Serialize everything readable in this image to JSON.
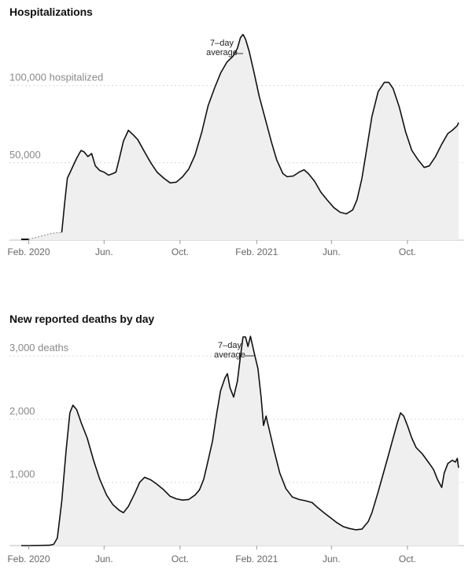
{
  "chart_data": [
    {
      "type": "area",
      "title": "Hospitalizations",
      "annotation": [
        "7–day",
        "average"
      ],
      "y_ticks": [
        {
          "value": 100000,
          "label": "100,000 hospitalized"
        },
        {
          "value": 50000,
          "label": "50,000"
        }
      ],
      "x_ticks": [
        {
          "date": "2020-02-01",
          "label": "Feb. 2020"
        },
        {
          "date": "2020-06-01",
          "label": "Jun."
        },
        {
          "date": "2020-10-01",
          "label": "Oct."
        },
        {
          "date": "2021-02-01",
          "label": "Feb. 2021"
        },
        {
          "date": "2021-06-01",
          "label": "Jun."
        },
        {
          "date": "2021-10-01",
          "label": "Oct."
        }
      ],
      "x_range": [
        "2020-01-20",
        "2021-12-31"
      ],
      "ylim": [
        0,
        140000
      ],
      "grid": true,
      "color": "#111111",
      "fill": "#efefef",
      "no_data_until": "2020-03-25",
      "series": [
        {
          "values": [
            [
              "2020-01-20",
              500
            ],
            [
              "2020-02-01",
              500
            ],
            [
              "2020-02-15",
              2000
            ],
            [
              "2020-03-10",
              4500
            ],
            [
              "2020-03-25",
              5000
            ],
            [
              "2020-03-30",
              25000
            ],
            [
              "2020-04-03",
              40000
            ],
            [
              "2020-04-10",
              46000
            ],
            [
              "2020-04-18",
              53000
            ],
            [
              "2020-04-25",
              58000
            ],
            [
              "2020-04-30",
              57000
            ],
            [
              "2020-05-06",
              54000
            ],
            [
              "2020-05-12",
              56000
            ],
            [
              "2020-05-18",
              48000
            ],
            [
              "2020-05-25",
              45000
            ],
            [
              "2020-06-01",
              44000
            ],
            [
              "2020-06-08",
              42000
            ],
            [
              "2020-06-15",
              43000
            ],
            [
              "2020-06-20",
              44000
            ],
            [
              "2020-06-25",
              52000
            ],
            [
              "2020-07-02",
              64000
            ],
            [
              "2020-07-10",
              71000
            ],
            [
              "2020-07-18",
              68000
            ],
            [
              "2020-07-25",
              65000
            ],
            [
              "2020-08-05",
              57000
            ],
            [
              "2020-08-15",
              50000
            ],
            [
              "2020-08-25",
              44000
            ],
            [
              "2020-09-05",
              40000
            ],
            [
              "2020-09-15",
              37000
            ],
            [
              "2020-09-25",
              37500
            ],
            [
              "2020-10-05",
              41000
            ],
            [
              "2020-10-15",
              46000
            ],
            [
              "2020-10-25",
              55000
            ],
            [
              "2020-11-05",
              70000
            ],
            [
              "2020-11-15",
              87000
            ],
            [
              "2020-11-25",
              98000
            ],
            [
              "2020-12-05",
              108000
            ],
            [
              "2020-12-15",
              115000
            ],
            [
              "2020-12-25",
              119000
            ],
            [
              "2021-01-01",
              124000
            ],
            [
              "2021-01-06",
              131000
            ],
            [
              "2021-01-10",
              133000
            ],
            [
              "2021-01-14",
              130000
            ],
            [
              "2021-01-20",
              122000
            ],
            [
              "2021-01-28",
              108000
            ],
            [
              "2021-02-05",
              93000
            ],
            [
              "2021-02-15",
              78000
            ],
            [
              "2021-02-25",
              63000
            ],
            [
              "2021-03-05",
              52000
            ],
            [
              "2021-03-15",
              43000
            ],
            [
              "2021-03-22",
              41000
            ],
            [
              "2021-04-01",
              41500
            ],
            [
              "2021-04-10",
              44000
            ],
            [
              "2021-04-18",
              45500
            ],
            [
              "2021-04-25",
              43000
            ],
            [
              "2021-05-05",
              38000
            ],
            [
              "2021-05-15",
              31000
            ],
            [
              "2021-05-25",
              26000
            ],
            [
              "2021-06-05",
              21000
            ],
            [
              "2021-06-15",
              18000
            ],
            [
              "2021-06-25",
              17000
            ],
            [
              "2021-07-05",
              19500
            ],
            [
              "2021-07-12",
              26000
            ],
            [
              "2021-07-20",
              40000
            ],
            [
              "2021-07-28",
              60000
            ],
            [
              "2021-08-05",
              80000
            ],
            [
              "2021-08-15",
              96000
            ],
            [
              "2021-08-25",
              102000
            ],
            [
              "2021-09-01",
              102000
            ],
            [
              "2021-09-08",
              98000
            ],
            [
              "2021-09-18",
              86000
            ],
            [
              "2021-09-28",
              70000
            ],
            [
              "2021-10-08",
              58000
            ],
            [
              "2021-10-18",
              52000
            ],
            [
              "2021-10-28",
              47000
            ],
            [
              "2021-11-05",
              48000
            ],
            [
              "2021-11-15",
              54000
            ],
            [
              "2021-11-25",
              62000
            ],
            [
              "2021-12-05",
              69000
            ],
            [
              "2021-12-12",
              71000
            ],
            [
              "2021-12-20",
              74000
            ],
            [
              "2021-12-22",
              76000
            ]
          ]
        }
      ]
    },
    {
      "type": "area",
      "title": "New reported deaths by day",
      "annotation": [
        "7–day",
        "average"
      ],
      "y_ticks": [
        {
          "value": 3000,
          "label": "3,000 deaths"
        },
        {
          "value": 2000,
          "label": "2,000"
        },
        {
          "value": 1000,
          "label": "1,000"
        }
      ],
      "x_ticks": [
        {
          "date": "2020-02-01",
          "label": "Feb. 2020"
        },
        {
          "date": "2020-06-01",
          "label": "Jun."
        },
        {
          "date": "2020-10-01",
          "label": "Oct."
        },
        {
          "date": "2021-02-01",
          "label": "Feb. 2021"
        },
        {
          "date": "2021-06-01",
          "label": "Jun."
        },
        {
          "date": "2021-10-01",
          "label": "Oct."
        }
      ],
      "x_range": [
        "2020-01-20",
        "2021-12-31"
      ],
      "ylim": [
        0,
        3400
      ],
      "grid": true,
      "color": "#111111",
      "fill": "#efefef",
      "series": [
        {
          "values": [
            [
              "2020-01-20",
              0
            ],
            [
              "2020-02-01",
              0
            ],
            [
              "2020-03-05",
              5
            ],
            [
              "2020-03-12",
              20
            ],
            [
              "2020-03-18",
              120
            ],
            [
              "2020-03-25",
              700
            ],
            [
              "2020-04-01",
              1500
            ],
            [
              "2020-04-07",
              2100
            ],
            [
              "2020-04-12",
              2220
            ],
            [
              "2020-04-18",
              2150
            ],
            [
              "2020-04-25",
              1950
            ],
            [
              "2020-05-05",
              1700
            ],
            [
              "2020-05-15",
              1350
            ],
            [
              "2020-05-25",
              1050
            ],
            [
              "2020-06-05",
              800
            ],
            [
              "2020-06-15",
              650
            ],
            [
              "2020-06-25",
              560
            ],
            [
              "2020-07-02",
              520
            ],
            [
              "2020-07-10",
              620
            ],
            [
              "2020-07-20",
              820
            ],
            [
              "2020-07-28",
              1000
            ],
            [
              "2020-08-05",
              1080
            ],
            [
              "2020-08-15",
              1040
            ],
            [
              "2020-08-25",
              970
            ],
            [
              "2020-09-05",
              880
            ],
            [
              "2020-09-15",
              780
            ],
            [
              "2020-09-25",
              740
            ],
            [
              "2020-10-05",
              720
            ],
            [
              "2020-10-15",
              730
            ],
            [
              "2020-10-25",
              800
            ],
            [
              "2020-11-01",
              880
            ],
            [
              "2020-11-08",
              1050
            ],
            [
              "2020-11-15",
              1350
            ],
            [
              "2020-11-22",
              1650
            ],
            [
              "2020-11-29",
              2100
            ],
            [
              "2020-12-05",
              2450
            ],
            [
              "2020-12-12",
              2650
            ],
            [
              "2020-12-16",
              2720
            ],
            [
              "2020-12-20",
              2500
            ],
            [
              "2020-12-26",
              2350
            ],
            [
              "2021-01-01",
              2600
            ],
            [
              "2021-01-06",
              3000
            ],
            [
              "2021-01-10",
              3300
            ],
            [
              "2021-01-14",
              3300
            ],
            [
              "2021-01-18",
              3150
            ],
            [
              "2021-01-22",
              3310
            ],
            [
              "2021-01-28",
              3050
            ],
            [
              "2021-02-03",
              2800
            ],
            [
              "2021-02-08",
              2350
            ],
            [
              "2021-02-12",
              1900
            ],
            [
              "2021-02-16",
              2050
            ],
            [
              "2021-02-22",
              1800
            ],
            [
              "2021-03-01",
              1500
            ],
            [
              "2021-03-10",
              1150
            ],
            [
              "2021-03-20",
              900
            ],
            [
              "2021-03-30",
              770
            ],
            [
              "2021-04-10",
              730
            ],
            [
              "2021-04-20",
              710
            ],
            [
              "2021-05-01",
              680
            ],
            [
              "2021-05-10",
              600
            ],
            [
              "2021-05-20",
              520
            ],
            [
              "2021-06-01",
              430
            ],
            [
              "2021-06-10",
              360
            ],
            [
              "2021-06-20",
              300
            ],
            [
              "2021-06-30",
              270
            ],
            [
              "2021-07-10",
              250
            ],
            [
              "2021-07-20",
              260
            ],
            [
              "2021-07-30",
              380
            ],
            [
              "2021-08-05",
              520
            ],
            [
              "2021-08-15",
              850
            ],
            [
              "2021-08-25",
              1200
            ],
            [
              "2021-09-01",
              1450
            ],
            [
              "2021-09-08",
              1700
            ],
            [
              "2021-09-15",
              1950
            ],
            [
              "2021-09-20",
              2100
            ],
            [
              "2021-09-25",
              2050
            ],
            [
              "2021-10-01",
              1900
            ],
            [
              "2021-10-08",
              1700
            ],
            [
              "2021-10-15",
              1550
            ],
            [
              "2021-10-25",
              1450
            ],
            [
              "2021-11-05",
              1300
            ],
            [
              "2021-11-12",
              1200
            ],
            [
              "2021-11-18",
              1050
            ],
            [
              "2021-11-25",
              920
            ],
            [
              "2021-11-29",
              1150
            ],
            [
              "2021-12-05",
              1300
            ],
            [
              "2021-12-12",
              1350
            ],
            [
              "2021-12-17",
              1320
            ],
            [
              "2021-12-20",
              1380
            ],
            [
              "2021-12-22",
              1230
            ]
          ]
        }
      ]
    }
  ]
}
